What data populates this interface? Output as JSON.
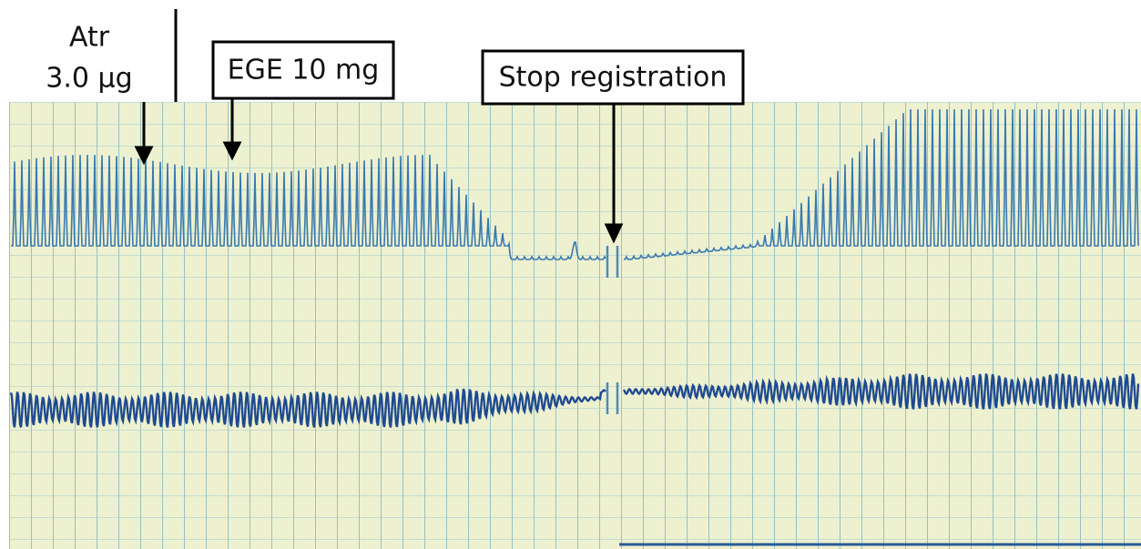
{
  "annotations": {
    "atropine": {
      "name": "Atr",
      "dose": "3.0 µg"
    },
    "extract": "EGE 10 mg",
    "stop": "Stop registration"
  }
}
